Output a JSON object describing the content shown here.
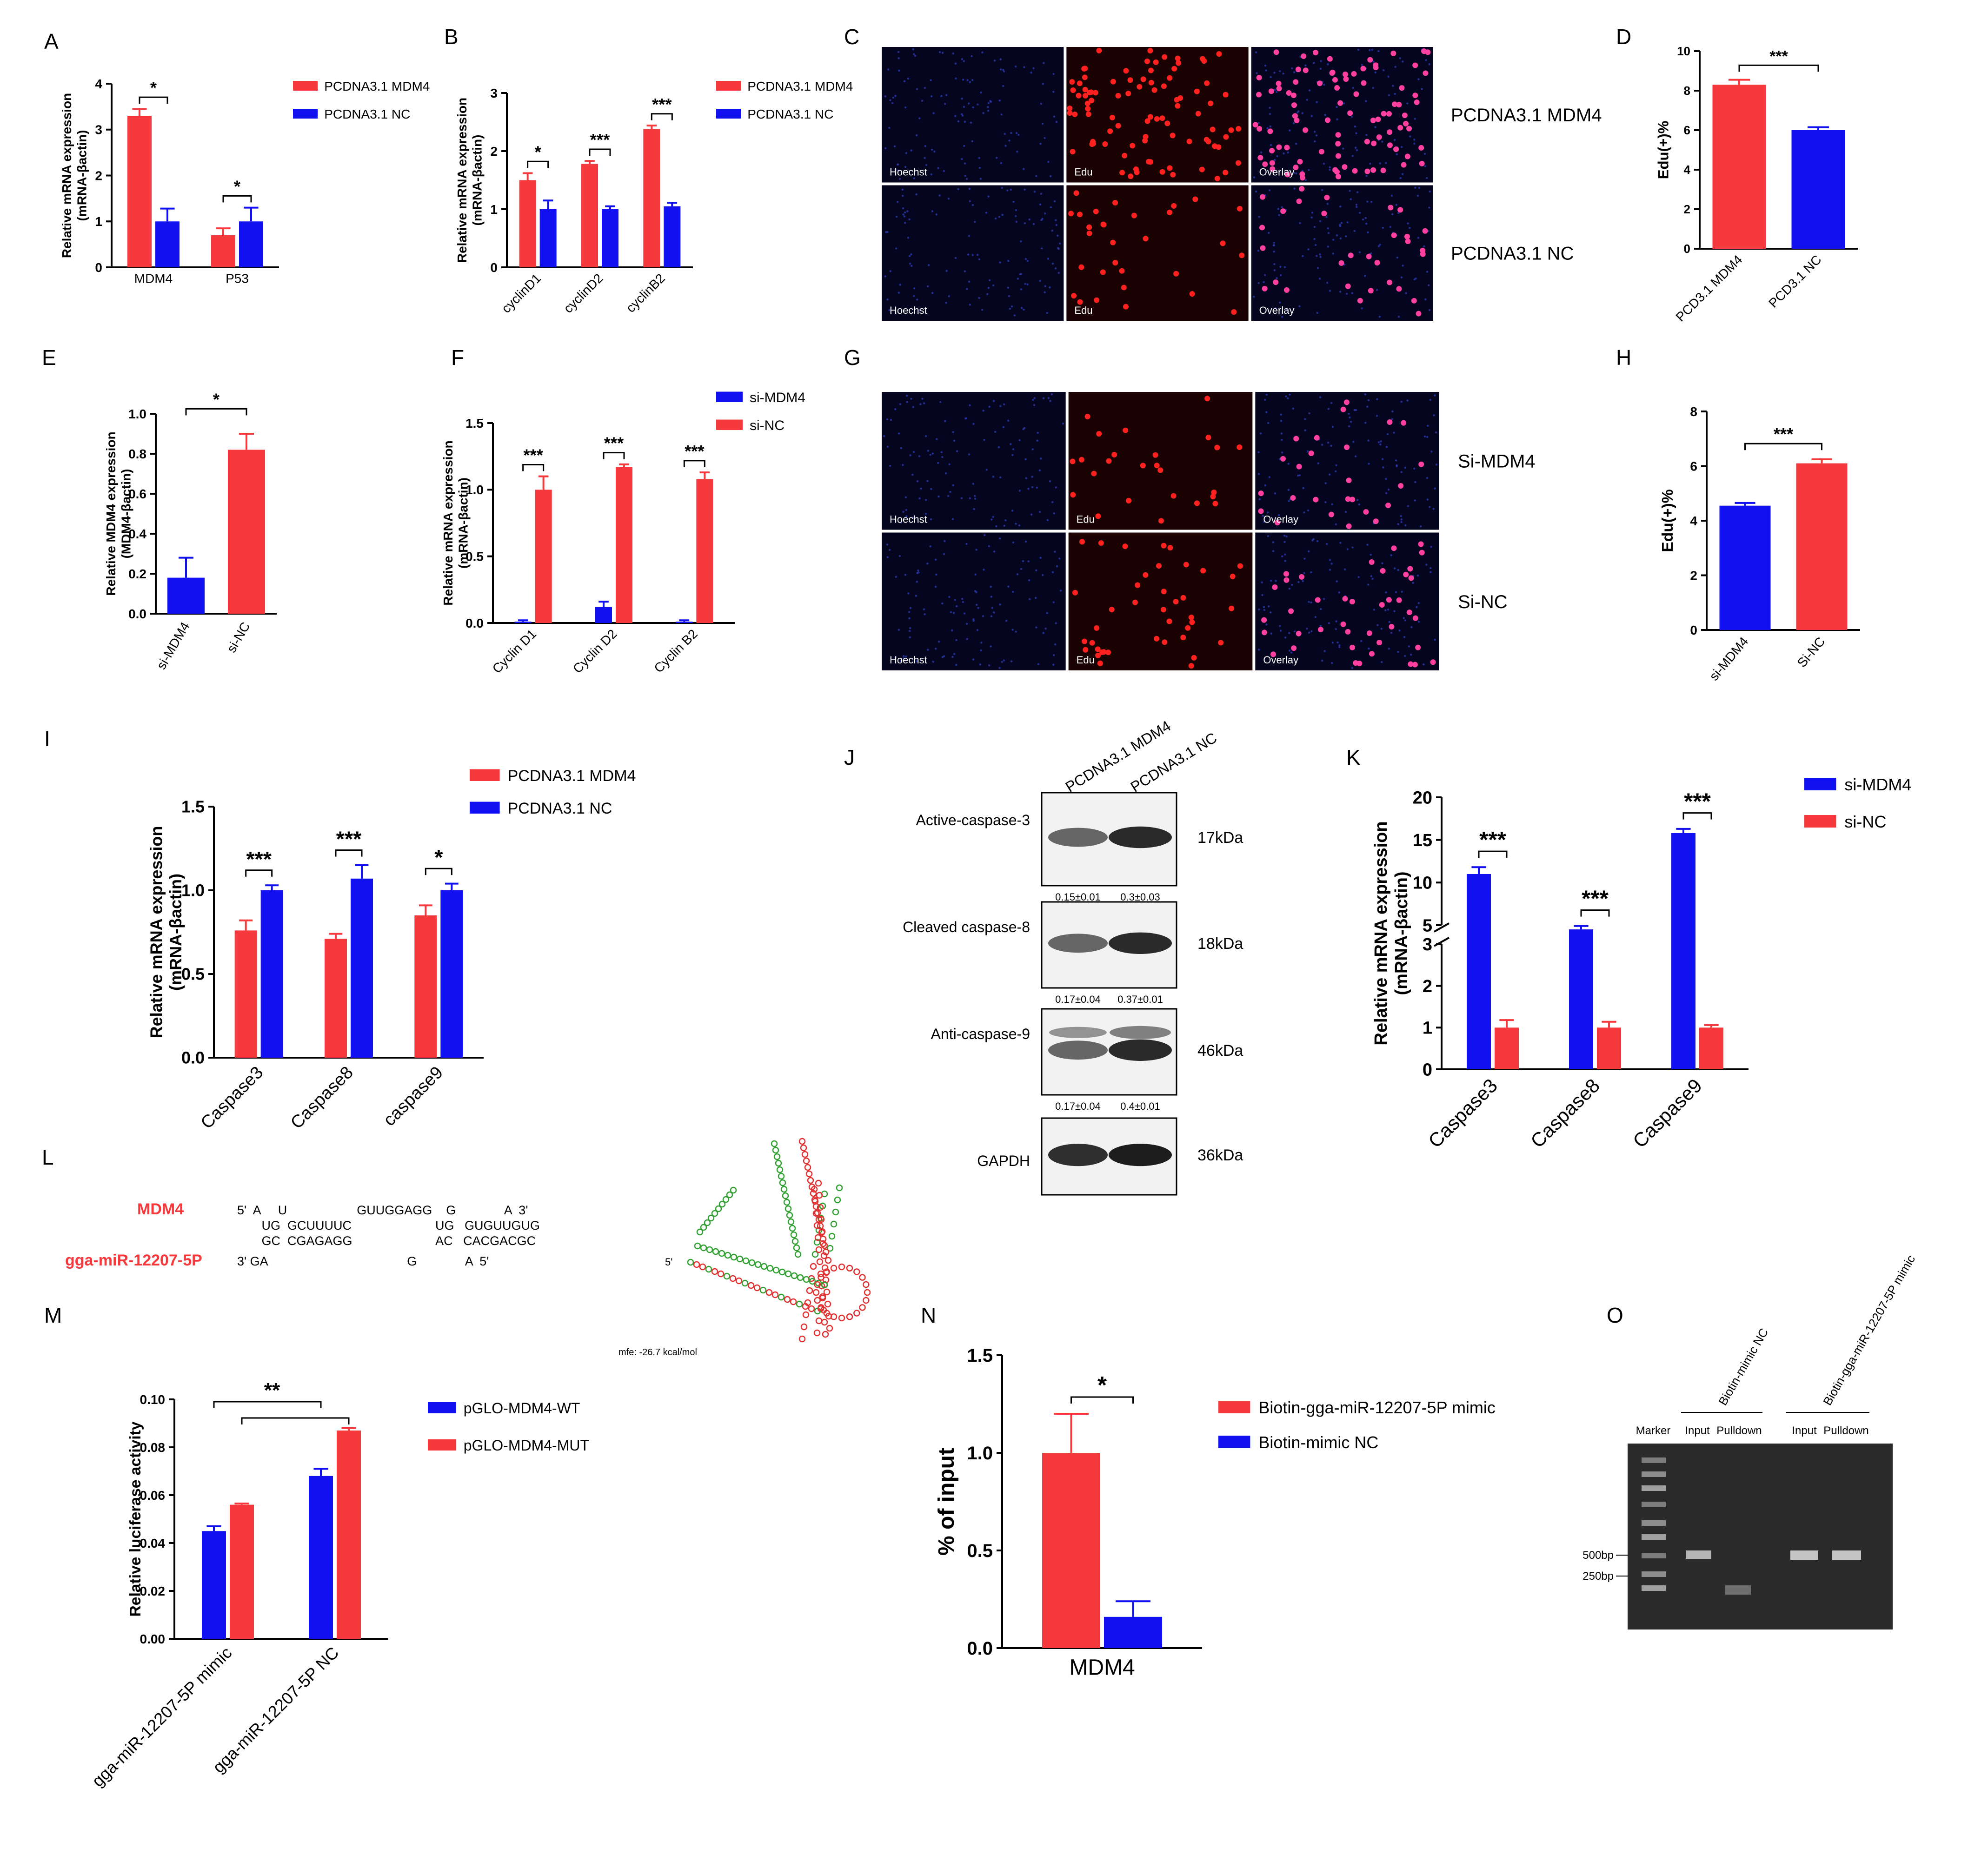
{
  "colors": {
    "red": "#f5393d",
    "blue": "#1010f0",
    "black": "#000000",
    "gel_bg": "#2a2a2a",
    "blot_bg": "#f2f2f2"
  },
  "panel_letters": [
    "A",
    "B",
    "C",
    "D",
    "E",
    "F",
    "G",
    "H",
    "I",
    "J",
    "K",
    "L",
    "M",
    "N",
    "O"
  ],
  "chart_data": [
    {
      "panel": "A",
      "type": "bar",
      "categories": [
        "MDM4",
        "P53"
      ],
      "ylabel": "Relative mRNA expression\n(mRNA-βactin)",
      "ylim": [
        0,
        4
      ],
      "yticks": [
        0,
        1,
        2,
        3,
        4
      ],
      "series": [
        {
          "name": "PCDNA3.1 MDM4",
          "color": "red",
          "values": [
            3.3,
            0.7
          ],
          "errors": [
            0.15,
            0.15
          ]
        },
        {
          "name": "PCDNA3.1 NC",
          "color": "blue",
          "values": [
            1.0,
            1.0
          ],
          "errors": [
            0.28,
            0.3
          ]
        }
      ],
      "significance": [
        "*",
        "*"
      ],
      "legend": "right"
    },
    {
      "panel": "B",
      "type": "bar",
      "categories": [
        "cyclinD1",
        "cyclinD2",
        "cyclinB2"
      ],
      "ylabel": "Relative mRNA expression\n(mRNA-βactin)",
      "ylim": [
        0,
        3
      ],
      "yticks": [
        0,
        1,
        2,
        3
      ],
      "series": [
        {
          "name": "PCDNA3.1 MDM4",
          "color": "red",
          "values": [
            1.5,
            1.78,
            2.38
          ],
          "errors": [
            0.12,
            0.05,
            0.06
          ]
        },
        {
          "name": "PCDNA3.1 NC",
          "color": "blue",
          "values": [
            1.0,
            1.0,
            1.05
          ],
          "errors": [
            0.15,
            0.05,
            0.06
          ]
        }
      ],
      "significance": [
        "*",
        "***",
        "***"
      ],
      "legend": "right"
    },
    {
      "panel": "D",
      "type": "bar",
      "categories": [
        "PCD3.1 MDM4",
        "PCD3.1 NC"
      ],
      "ylabel": "Edu(+)%",
      "ylim": [
        0,
        10
      ],
      "yticks": [
        0,
        2,
        4,
        6,
        8,
        10
      ],
      "values": [
        8.3,
        6.0
      ],
      "errors": [
        0.25,
        0.15
      ],
      "colors": [
        "red",
        "blue"
      ],
      "significance": [
        "***"
      ]
    },
    {
      "panel": "E",
      "type": "bar",
      "categories": [
        "si-MDM4",
        "si-NC"
      ],
      "ylabel": "Relative MDM4 expression\n(MDM4-βactin)",
      "ylim": [
        0,
        1.0
      ],
      "yticks": [
        0.0,
        0.2,
        0.4,
        0.6,
        0.8,
        1.0
      ],
      "values": [
        0.18,
        0.82
      ],
      "errors": [
        0.1,
        0.08
      ],
      "colors": [
        "blue",
        "red"
      ],
      "significance": [
        "*"
      ]
    },
    {
      "panel": "F",
      "type": "bar",
      "categories": [
        "Cyclin D1",
        "Cyclin D2",
        "Cyclin B2"
      ],
      "ylabel": "Relative mRNA expression\n(mRNA-βactin)",
      "ylim": [
        0,
        1.5
      ],
      "yticks": [
        0.0,
        0.5,
        1.0,
        1.5
      ],
      "series": [
        {
          "name": "si-MDM4",
          "color": "blue",
          "values": [
            0.01,
            0.12,
            0.01
          ],
          "errors": [
            0.01,
            0.04,
            0.01
          ]
        },
        {
          "name": "si-NC",
          "color": "red",
          "values": [
            1.0,
            1.17,
            1.08
          ],
          "errors": [
            0.1,
            0.02,
            0.05
          ]
        }
      ],
      "significance": [
        "***",
        "***",
        "***"
      ],
      "legend": "right"
    },
    {
      "panel": "H",
      "type": "bar",
      "categories": [
        "si-MDM4",
        "Si-NC"
      ],
      "ylabel": "Edu(+)%",
      "ylim": [
        0,
        8
      ],
      "yticks": [
        0,
        2,
        4,
        6,
        8
      ],
      "values": [
        4.55,
        6.1
      ],
      "errors": [
        0.1,
        0.15
      ],
      "colors": [
        "blue",
        "red"
      ],
      "significance": [
        "***"
      ]
    },
    {
      "panel": "I",
      "type": "bar",
      "categories": [
        "Caspase3",
        "Caspase8",
        "caspase9"
      ],
      "ylabel": "Relative mRNA expression\n(mRNA-βactin)",
      "ylim": [
        0,
        1.5
      ],
      "yticks": [
        0.0,
        0.5,
        1.0,
        1.5
      ],
      "series": [
        {
          "name": "PCDNA3.1 MDM4",
          "color": "red",
          "values": [
            0.76,
            0.71,
            0.85
          ],
          "errors": [
            0.06,
            0.03,
            0.06
          ]
        },
        {
          "name": "PCDNA3.1 NC",
          "color": "blue",
          "values": [
            1.0,
            1.07,
            1.0
          ],
          "errors": [
            0.03,
            0.08,
            0.04
          ]
        }
      ],
      "significance": [
        "***",
        "***",
        "*"
      ],
      "legend": "top-right"
    },
    {
      "panel": "K",
      "type": "bar",
      "categories": [
        "Caspase3",
        "Caspase8",
        "Caspase9"
      ],
      "ylabel": "Relative mRNA expression\n(mRNA-βactin)",
      "ylim": [
        0,
        20
      ],
      "axis_break": [
        3,
        5
      ],
      "yticks": [
        0,
        1,
        2,
        3,
        5,
        10,
        15,
        20
      ],
      "series": [
        {
          "name": "si-MDM4",
          "color": "blue",
          "values": [
            11.0,
            4.5,
            15.8
          ],
          "errors": [
            0.8,
            0.4,
            0.5
          ]
        },
        {
          "name": "si-NC",
          "color": "red",
          "values": [
            1.0,
            1.0,
            1.0
          ],
          "errors": [
            0.18,
            0.14,
            0.06
          ]
        }
      ],
      "significance": [
        "***",
        "***",
        "***"
      ],
      "legend": "top-right"
    },
    {
      "panel": "M",
      "type": "bar",
      "categories": [
        "gga-miR-12207-5P mimic",
        "gga-miR-12207-5P NC"
      ],
      "ylabel": "Relative luciferase  activity",
      "ylim": [
        0,
        0.1
      ],
      "yticks": [
        0.0,
        0.02,
        0.04,
        0.06,
        0.08,
        0.1
      ],
      "series": [
        {
          "name": "pGLO-MDM4-WT",
          "color": "blue",
          "values": [
            0.045,
            0.068
          ],
          "errors": [
            0.002,
            0.003
          ]
        },
        {
          "name": "pGLO-MDM4-MUT",
          "color": "red",
          "values": [
            0.056,
            0.087
          ],
          "errors": [
            0.0005,
            0.001
          ]
        }
      ],
      "significance": [
        "**"
      ],
      "legend": "right"
    },
    {
      "panel": "N",
      "type": "bar",
      "categories": [
        "MDM4"
      ],
      "ylabel": "% of input",
      "ylim": [
        0,
        1.5
      ],
      "yticks": [
        0.0,
        0.5,
        1.0,
        1.5
      ],
      "series": [
        {
          "name": "Biotin-gga-miR-12207-5P mimic",
          "color": "red",
          "values": [
            1.0
          ],
          "errors": [
            0.2
          ]
        },
        {
          "name": "Biotin-mimic NC",
          "color": "blue",
          "values": [
            0.16
          ],
          "errors": [
            0.08
          ]
        }
      ],
      "significance": [
        "*"
      ],
      "legend": "right"
    }
  ],
  "panel_c": {
    "rows": [
      "PCDNA3.1 MDM4",
      "PCDNA3.1 NC"
    ],
    "columns": [
      "Hoechst",
      "Edu",
      "Overlay"
    ]
  },
  "panel_g": {
    "rows": [
      "Si-MDM4",
      "Si-NC"
    ],
    "columns": [
      "Hoechst",
      "Edu",
      "Overlay"
    ]
  },
  "panel_j": {
    "lanes": [
      "PCDNA3.1 MDM4",
      "PCDNA3.1 NC"
    ],
    "blots": [
      {
        "label": "Active-caspase-3",
        "size": "17kDa",
        "quant": [
          "0.15±0.01",
          "0.3±0.03"
        ]
      },
      {
        "label": "Cleaved caspase-8",
        "size": "18kDa",
        "quant": [
          "0.17±0.04",
          "0.37±0.01"
        ]
      },
      {
        "label": "Anti-caspase-9",
        "size": "46kDa",
        "quant": [
          "0.17±0.04",
          "0.4±0.01"
        ]
      },
      {
        "label": "GAPDH",
        "size": "36kDa",
        "quant": []
      }
    ]
  },
  "panel_l": {
    "gene": "MDM4",
    "mirna": "gga-miR-12207-5P",
    "line1": "5'  A     U                    GUUGGAGG    G              A  3'",
    "line2": "       UG  GCUUUUC                        UG   GUGUUGUG",
    "line3": "       GC  CGAGAGG                        AC   CACGACGC",
    "line4": "3' GA                                        G              A  5'",
    "mfe": "mfe: -26.7 kcal/mol",
    "five_prime": "5'"
  },
  "panel_o": {
    "lanes": [
      "Marker",
      "Input",
      "Pulldown",
      "Input",
      "Pulldown"
    ],
    "groups": [
      "Biotin-mimic NC",
      "Biotin-gga-miR-12207-5P mimic"
    ],
    "markers": [
      "500bp",
      "250bp"
    ]
  }
}
